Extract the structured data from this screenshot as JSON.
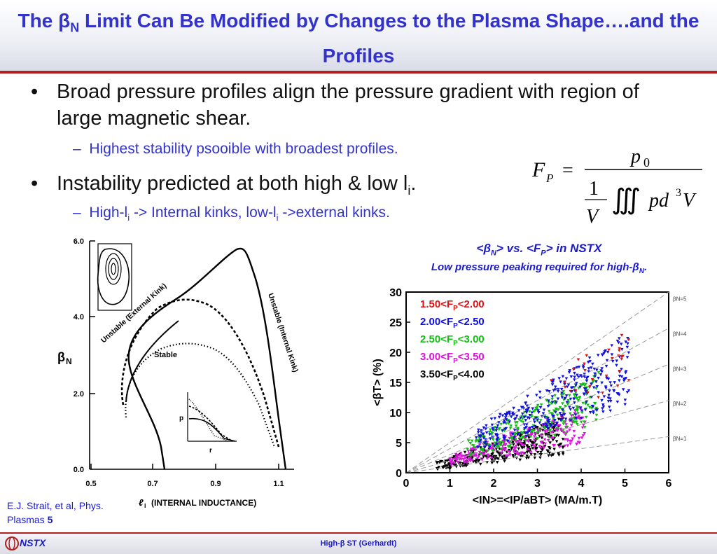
{
  "slide": {
    "title_pre": "The ",
    "title_beta": "β",
    "title_beta_sub": "N",
    "title_post": " Limit Can Be Modified by Changes to the Plasma Shape….and the Profiles",
    "bullet1": "Broad pressure profiles align the pressure gradient with region of large magnetic shear.",
    "sub_bullet1": "Highest stability psooible with broadest profiles.",
    "bullet2_pre": "Instability predicted at both high & low l",
    "bullet2_sub": "i",
    "bullet2_post": ".",
    "sub_bullet2_a": "High-l",
    "sub_bullet2_a_sub": "i",
    "sub_bullet2_b": " -> Internal kinks, low-l",
    "sub_bullet2_b_sub": "i",
    "sub_bullet2_c": " ->external kinks.",
    "bullet_symbol": "•",
    "dash_symbol": "–"
  },
  "formula": {
    "lhs": "F",
    "lhs_sub": "P",
    "equals": "=",
    "numerator": "p",
    "numerator_sub": "0",
    "one": "1",
    "V": "V",
    "integral": "∭",
    "integrand": "pd",
    "integrand_sup": "3",
    "integrand_end": "V"
  },
  "left_figure": {
    "ylabel": "β",
    "ylabel_sub": "N",
    "xlabel_l": "ℓ",
    "xlabel_sub": "i",
    "xlabel_rest": "(INTERNAL INDUCTANCE)",
    "yticks": [
      "6.0",
      "4.0",
      "2.0",
      "0.0"
    ],
    "xticks": [
      "0.5",
      "0.7",
      "0.9",
      "1.1"
    ],
    "label_external": "Unstable (External Kink)",
    "label_internal": "Unstable (Internal Kink)",
    "label_stable": "Stable",
    "inset_p": "p",
    "inset_r": "r"
  },
  "right_chart": {
    "title_lt": "<",
    "title_beta": "β",
    "title_beta_sub": "N",
    "title_rest": "> vs. <F",
    "title_fp_sub": "P",
    "title_end": "> in NSTX",
    "subtitle": "Low pressure peaking required for high-β",
    "subtitle_sub": "N",
    "subtitle_end": "."
  },
  "chart_data": {
    "type": "scatter",
    "title": "<βN> vs. <FP> in NSTX",
    "xlabel": "<IN>=<IP/aBT> (MA/m.T)",
    "ylabel": "<βT> (%)",
    "xlim": [
      0,
      6
    ],
    "ylim": [
      0,
      30
    ],
    "xticks": [
      "0",
      "1",
      "2",
      "3",
      "4",
      "5",
      "6"
    ],
    "yticks": [
      "0",
      "5",
      "10",
      "15",
      "20",
      "25",
      "30"
    ],
    "reference_lines": [
      {
        "label": "βN=1",
        "slope": 1
      },
      {
        "label": "βN=2",
        "slope": 2
      },
      {
        "label": "βN=3",
        "slope": 3
      },
      {
        "label": "βN=4",
        "slope": 4
      },
      {
        "label": "βN=5",
        "slope": 5
      }
    ],
    "legend": [
      {
        "label": "1.50<FP<2.00",
        "color": "#e01010"
      },
      {
        "label": "2.00<FP<2.50",
        "color": "#1010e0"
      },
      {
        "label": "2.50<FP<3.00",
        "color": "#10c010"
      },
      {
        "label": "3.00<FP<3.50",
        "color": "#e010e0"
      },
      {
        "label": "3.50<FP<4.00",
        "color": "#000000"
      }
    ],
    "legend_text": [
      {
        "pre": "1.50<F",
        "sub": "P",
        "post": "<2.00"
      },
      {
        "pre": "2.00<F",
        "sub": "P",
        "post": "<2.50"
      },
      {
        "pre": "2.50<F",
        "sub": "P",
        "post": "<3.00"
      },
      {
        "pre": "3.00<F",
        "sub": "P",
        "post": "<3.50"
      },
      {
        "pre": "3.50<F",
        "sub": "P",
        "post": "<4.00"
      }
    ],
    "clusters": [
      {
        "name": "3.50<FP<4.00",
        "color": "#000000",
        "x_range": [
          0.7,
          3.6
        ],
        "beta_n_range": [
          0.8,
          2.6
        ],
        "count": 320
      },
      {
        "name": "3.00<FP<3.50",
        "color": "#e010e0",
        "x_range": [
          1.0,
          4.1
        ],
        "beta_n_range": [
          1.2,
          2.8
        ],
        "count": 260
      },
      {
        "name": "2.50<FP<3.00",
        "color": "#10c010",
        "x_range": [
          1.4,
          4.4
        ],
        "beta_n_range": [
          1.8,
          3.8
        ],
        "count": 260
      },
      {
        "name": "2.00<FP<2.50",
        "color": "#1010e0",
        "x_range": [
          1.6,
          5.1
        ],
        "beta_n_range": [
          2.2,
          4.6
        ],
        "count": 340
      },
      {
        "name": "1.50<FP<2.00",
        "color": "#e01010",
        "x_range": [
          3.3,
          5.1
        ],
        "beta_n_range": [
          2.8,
          4.8
        ],
        "count": 30
      }
    ]
  },
  "citation": {
    "line1": "E.J. Strait, et al, Phys.",
    "line2": "Plasmas ",
    "volume": "5"
  },
  "footer": {
    "logo_text": "NSTX",
    "center_pre": "High-",
    "center_beta": "β",
    "center_post": " ST (Gerhardt)"
  },
  "colors": {
    "title": "#3333cc",
    "accent_rule": "#b02020",
    "sub_bullet": "#3333cc"
  }
}
